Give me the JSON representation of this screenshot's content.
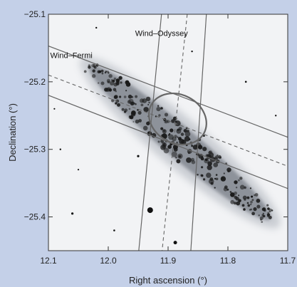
{
  "chart_data": {
    "type": "scatter",
    "title": "",
    "xlabel": "Right ascension (°)",
    "ylabel": "Declination (°)",
    "x_reversed": true,
    "xlim": [
      12.1,
      11.7
    ],
    "ylim": [
      -25.45,
      -25.1
    ],
    "x_ticks": [
      12.1,
      12.0,
      11.9,
      11.8,
      11.7
    ],
    "x_tick_labels": [
      "12.1",
      "12.0",
      "11.9",
      "11.8",
      "11.7"
    ],
    "y_ticks": [
      -25.1,
      -25.2,
      -25.3,
      -25.4
    ],
    "y_tick_labels": [
      "−25.1",
      "−25.2",
      "−25.3",
      "−25.4"
    ],
    "grid": false,
    "background_color": "#c4d0e8",
    "plot_background_color": "#f2f3f5",
    "galaxy": {
      "center_ra": 11.888,
      "center_dec": -25.288,
      "extent_ra": [
        12.04,
        11.72
      ],
      "extent_dec": [
        -25.17,
        -25.41
      ],
      "color": "#1a1a1a"
    },
    "ellipse": {
      "center_ra": 11.884,
      "center_dec": -25.255,
      "label": "",
      "color": "#666666"
    },
    "annotations": [
      {
        "label": "Wind–Fermi",
        "label_ra": 12.097,
        "label_dec": -25.165,
        "solid_lines": [
          [
            [
              12.1,
              -25.147
            ],
            [
              11.7,
              -25.282
            ]
          ],
          [
            [
              12.1,
              -25.22
            ],
            [
              11.7,
              -25.358
            ]
          ]
        ],
        "dashed_line": [
          [
            12.1,
            -25.19
          ],
          [
            11.7,
            -25.325
          ]
        ],
        "color": "#666666"
      },
      {
        "label": "Wind–Odyssey",
        "label_ra": 11.955,
        "label_dec": -25.132,
        "solid_lines": [
          [
            [
              11.911,
              -25.1
            ],
            [
              11.949,
              -25.45
            ]
          ],
          [
            [
              11.836,
              -25.1
            ],
            [
              11.862,
              -25.45
            ]
          ]
        ],
        "dashed_line": [
          [
            11.868,
            -25.1
          ],
          [
            11.91,
            -25.45
          ]
        ],
        "color": "#666666"
      }
    ]
  }
}
